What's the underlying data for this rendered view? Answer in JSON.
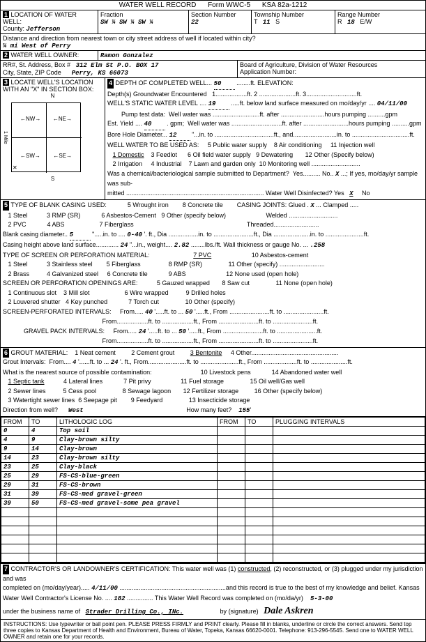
{
  "form": {
    "title": "WATER WELL RECORD",
    "form_no": "Form WWC-5",
    "ksa": "KSA 82a-1212"
  },
  "location": {
    "county": "Jefferson",
    "fraction": "SW ¼ SW ¼ SW ¼",
    "section": "22",
    "township": "11",
    "township_dir": "S",
    "range": "18",
    "range_dir": "E/W",
    "distance": "¼ mi West of Perry"
  },
  "owner": {
    "name": "Ramon Gonzalez",
    "address": "312 Elm St  P.O. BOX 17",
    "city_state_zip": "Perry, KS  66073",
    "board": "Board of Agriculture, Division of Water Resources",
    "app_no": "Application Number:"
  },
  "depth": {
    "completed": "50",
    "groundwater_1": "",
    "groundwater_2": "",
    "groundwater_3": "",
    "static_level": "19",
    "static_date": "04/11/00",
    "est_yield": "40",
    "bore_diameter": "12",
    "use_domestic": "1 Domestic",
    "use_feedlot": "3 Feedlot",
    "use_public": "5 Public water supply",
    "use_oil": "6 Oil field water supply",
    "use_ac": "8 Air conditioning",
    "use_dewater": "9 Dewatering",
    "use_inject": "11 Injection well",
    "use_irrigation": "2 Irrigation",
    "use_industrial": "4 Industrial",
    "use_lawn": "7 Lawn and garden only",
    "use_monitor": "10 Monitoring well",
    "use_other": "12 Other (Specify below)",
    "chem_yes": "",
    "chem_no": "X",
    "disinfect": "X"
  },
  "casing": {
    "diameter": "5",
    "depth_to": "0-40",
    "height_above": "24",
    "weight": "2.82",
    "gauge_no": ".258",
    "joints_glued": "X",
    "screen_from1": "40",
    "screen_to1": "50",
    "gravel_from1": "24",
    "gravel_to1": "50",
    "perf_type": "7 PVC",
    "perf_type2": "8 RMP (SR)"
  },
  "grout": {
    "material": "3 Bentonite",
    "from": "4",
    "to": "24",
    "direction": "West",
    "distance": "155"
  },
  "log": {
    "columns": [
      "FROM",
      "TO",
      "LITHOLOGIC LOG",
      "FROM",
      "TO",
      "PLUGGING INTERVALS"
    ],
    "rows": [
      [
        "0",
        "4",
        "Top soil",
        "",
        "",
        ""
      ],
      [
        "4",
        "9",
        "Clay-brown silty",
        "",
        "",
        ""
      ],
      [
        "9",
        "14",
        "Clay-brown",
        "",
        "",
        ""
      ],
      [
        "14",
        "23",
        "Clay-brown silty",
        "",
        "",
        ""
      ],
      [
        "23",
        "25",
        "Clay-black",
        "",
        "",
        ""
      ],
      [
        "25",
        "29",
        "FS-CS-blue-green",
        "",
        "",
        ""
      ],
      [
        "29",
        "31",
        "FS-CS-brown",
        "",
        "",
        ""
      ],
      [
        "31",
        "39",
        "FS-CS-med gravel-green",
        "",
        "",
        ""
      ],
      [
        "39",
        "50",
        "FS-CS-med gravel-some pea gravel",
        "",
        "",
        ""
      ],
      [
        "",
        "",
        "",
        "",
        "",
        ""
      ],
      [
        "",
        "",
        "",
        "",
        "",
        ""
      ],
      [
        "",
        "",
        "",
        "",
        "",
        ""
      ],
      [
        "",
        "",
        "",
        "",
        "",
        ""
      ],
      [
        "",
        "",
        "",
        "",
        "",
        ""
      ],
      [
        "",
        "",
        "",
        "",
        "",
        ""
      ]
    ]
  },
  "cert": {
    "date": "4/11/00",
    "license": "182",
    "completed_date": "5-3-00",
    "business": "Strader Drilling Co., INc.",
    "signature": "Dale Askren"
  },
  "instructions": "INSTRUCTIONS: Use typewriter or ball point pen. PLEASE PRESS FIRMLY and PRINT clearly. Please fill in blanks, underline or circle the correct answers. Send top three copies to Kansas Department of Health and Environment, Bureau of Water, Topeka, Kansas 66620-0001. Telephone: 913-296-5545. Send one to WATER WELL OWNER and retain one for your records."
}
